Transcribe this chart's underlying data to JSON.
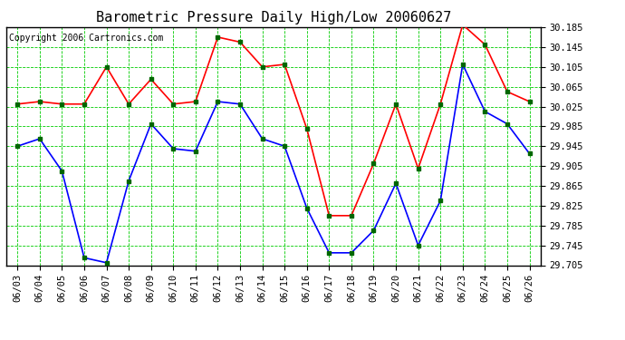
{
  "title": "Barometric Pressure Daily High/Low 20060627",
  "copyright": "Copyright 2006 Cartronics.com",
  "dates": [
    "06/03",
    "06/04",
    "06/05",
    "06/06",
    "06/07",
    "06/08",
    "06/09",
    "06/10",
    "06/11",
    "06/12",
    "06/13",
    "06/14",
    "06/15",
    "06/16",
    "06/17",
    "06/18",
    "06/19",
    "06/20",
    "06/21",
    "06/22",
    "06/23",
    "06/24",
    "06/25",
    "06/26"
  ],
  "high": [
    30.03,
    30.035,
    30.03,
    30.03,
    30.105,
    30.03,
    30.08,
    30.03,
    30.035,
    30.165,
    30.155,
    30.105,
    30.11,
    29.98,
    29.805,
    29.805,
    29.91,
    30.03,
    29.9,
    30.03,
    30.19,
    30.15,
    30.055,
    30.035
  ],
  "low": [
    29.945,
    29.96,
    29.895,
    29.72,
    29.71,
    29.875,
    29.99,
    29.94,
    29.935,
    30.035,
    30.03,
    29.96,
    29.945,
    29.82,
    29.73,
    29.73,
    29.775,
    29.87,
    29.745,
    29.835,
    30.11,
    30.015,
    29.99,
    29.93
  ],
  "ylim": [
    29.705,
    30.185
  ],
  "yticks": [
    29.705,
    29.745,
    29.785,
    29.825,
    29.865,
    29.905,
    29.945,
    29.985,
    30.025,
    30.065,
    30.105,
    30.145,
    30.185
  ],
  "high_color": "#FF0000",
  "low_color": "#0000FF",
  "grid_color": "#00CC00",
  "bg_color": "#FFFFFF",
  "plot_bg": "#FFFFFF",
  "title_fontsize": 11,
  "copyright_fontsize": 7,
  "tick_fontsize": 7.5,
  "marker_color_high": "#006600",
  "marker_color_low": "#006600"
}
